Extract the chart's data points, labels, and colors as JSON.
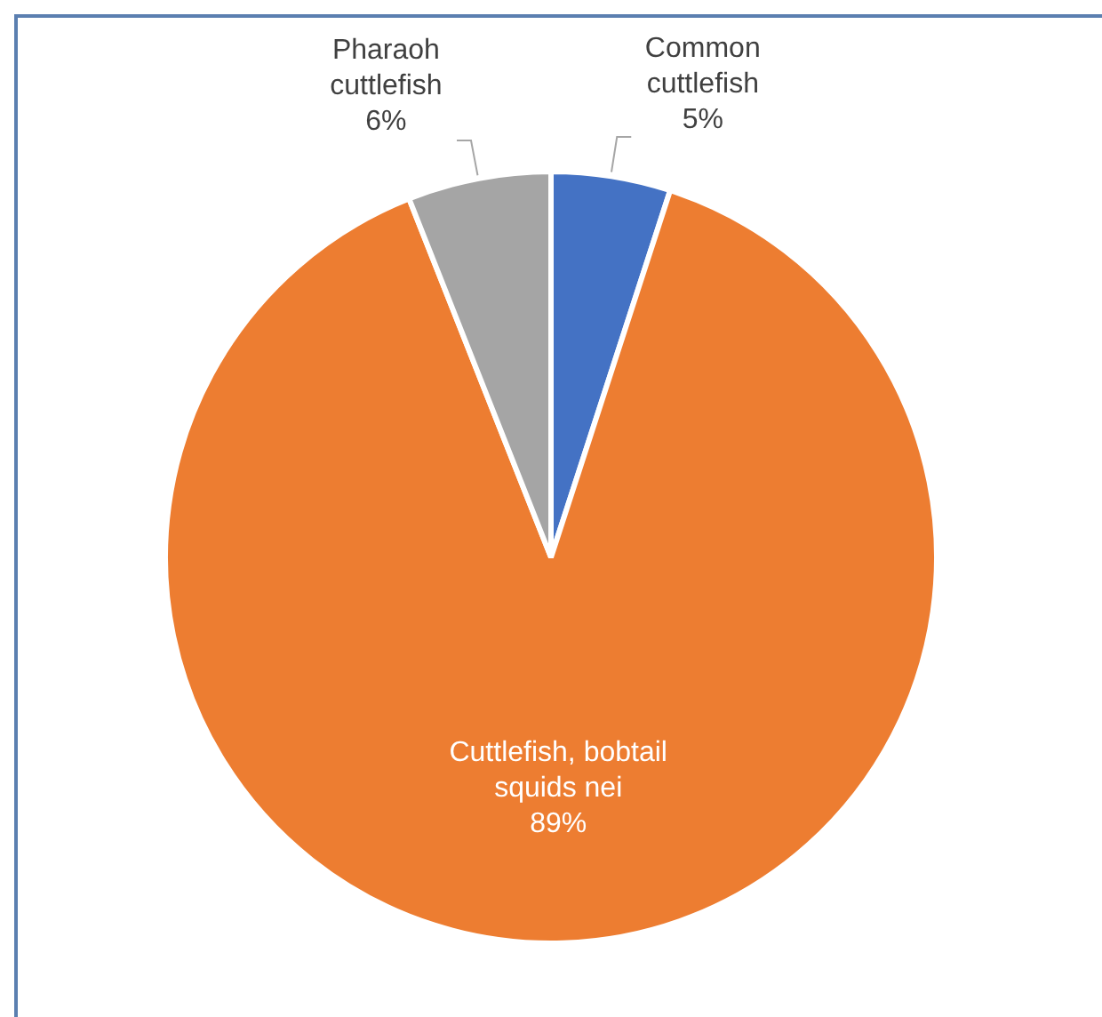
{
  "chart_data": {
    "type": "pie",
    "categories": [
      "Common cuttlefish",
      "Cuttlefish, bobtail squids nei",
      "Pharaoh cuttlefish"
    ],
    "values": [
      5,
      89,
      6
    ],
    "colors": [
      "#4472c4",
      "#ed7d31",
      "#a5a5a5"
    ],
    "value_labels": [
      "5%",
      "89%",
      "6%"
    ],
    "legend": false
  }
}
